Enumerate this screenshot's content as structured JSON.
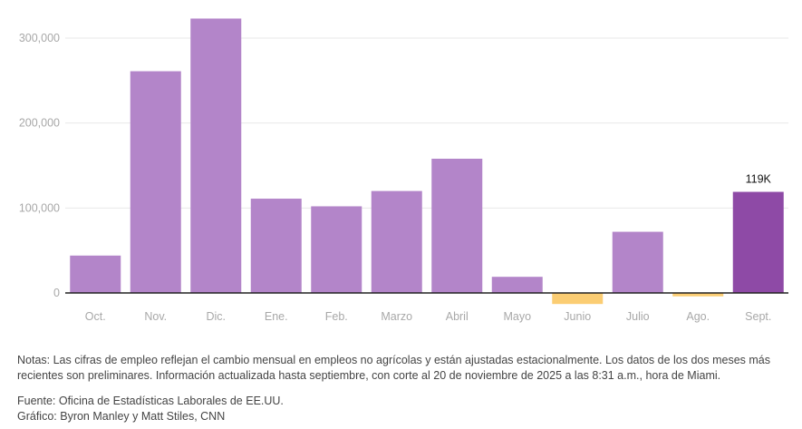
{
  "chart_data": {
    "type": "bar",
    "categories": [
      "Oct.",
      "Nov.",
      "Dic.",
      "Ene.",
      "Feb.",
      "Marzo",
      "Abril",
      "Mayo",
      "Junio",
      "Julio",
      "Ago.",
      "Sept."
    ],
    "values": [
      44000,
      261000,
      323000,
      111000,
      102000,
      120000,
      158000,
      19000,
      -13000,
      72000,
      -4000,
      119000
    ],
    "yticks": [
      "0",
      "100,000",
      "200,000",
      "300,000"
    ],
    "ytick_values": [
      0,
      100000,
      200000,
      300000
    ],
    "ylim": [
      -20000,
      335000
    ],
    "highlight_index": 11,
    "highlight_label": "119K",
    "grid": true,
    "colors": {
      "positive": "#b385c9",
      "negative": "#fbcd73",
      "highlight": "#8e4aa6",
      "gridline": "#e8e8e8",
      "zero_line": "#222222"
    }
  },
  "notes": "Notas: Las cifras de empleo reflejan el cambio mensual en empleos no agrícolas y están ajustadas estacionalmente. Los datos de los dos meses más recientes son preliminares. Información actualizada hasta septiembre, con corte al 20 de noviembre de 2025 a las 8:31 a.m., hora de Miami.",
  "source": "Fuente: Oficina de Estadísticas Laborales de EE.UU.",
  "credit": "Gráfico: Byron Manley y Matt Stiles, CNN"
}
